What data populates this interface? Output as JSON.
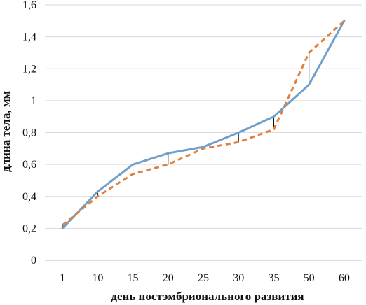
{
  "chart_data": {
    "type": "line",
    "title": "",
    "xlabel": "день постэмбрионального развития",
    "ylabel": "длина тела, мм",
    "categories": [
      "1",
      "10",
      "15",
      "20",
      "25",
      "30",
      "35",
      "50",
      "60"
    ],
    "ylim": [
      0,
      1.6
    ],
    "yticks": [
      0,
      0.2,
      0.4,
      0.6,
      0.8,
      1,
      1.2,
      1.4,
      1.6
    ],
    "ytick_labels": [
      "0",
      "0,2",
      "0,4",
      "0,6",
      "0,8",
      "1",
      "1,2",
      "1,4",
      "1,6"
    ],
    "grid": true,
    "legend": "none",
    "series": [
      {
        "values": [
          0.2,
          0.43,
          0.6,
          0.67,
          0.71,
          0.8,
          0.9,
          1.1,
          1.5
        ],
        "color": "#6f9fca",
        "style": "solid"
      },
      {
        "values": [
          0.22,
          0.4,
          0.54,
          0.6,
          0.7,
          0.74,
          0.82,
          1.3,
          1.5
        ],
        "color": "#e2803e",
        "style": "dashed"
      }
    ],
    "drop_lines": true
  }
}
